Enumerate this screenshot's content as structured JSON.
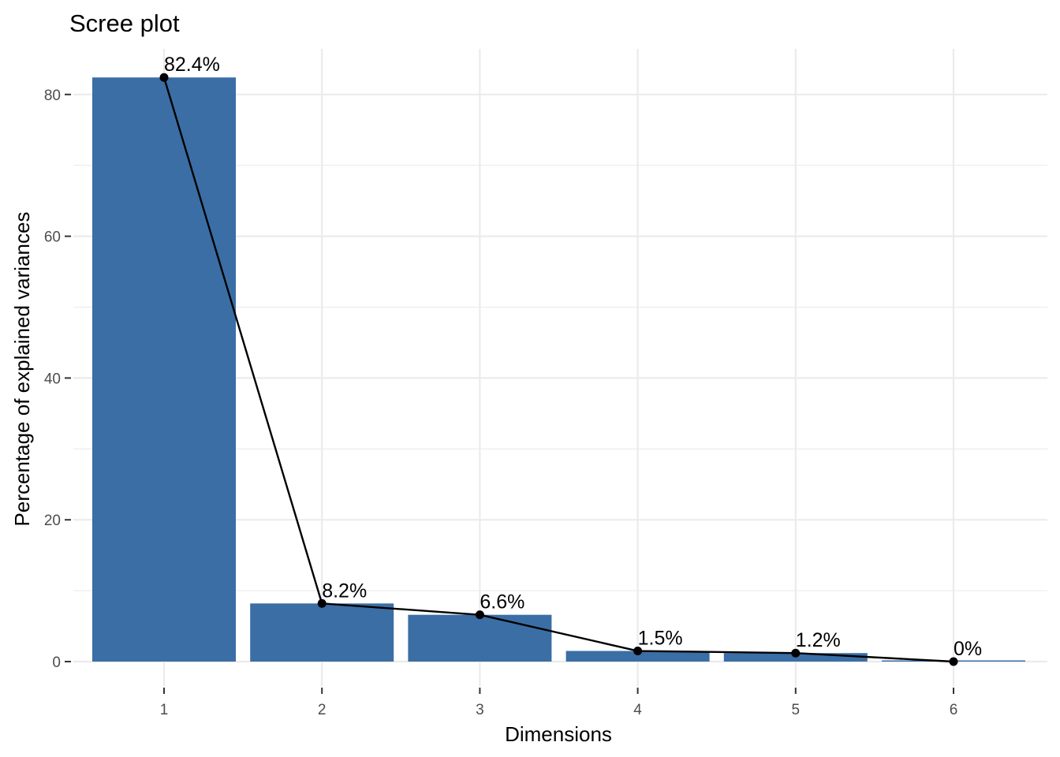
{
  "chart_data": {
    "type": "bar",
    "title": "Scree plot",
    "xlabel": "Dimensions",
    "ylabel": "Percentage of explained variances",
    "categories": [
      "1",
      "2",
      "3",
      "4",
      "5",
      "6"
    ],
    "values": [
      82.4,
      8.2,
      6.6,
      1.5,
      1.2,
      0.0
    ],
    "data_labels": [
      "82.4%",
      "8.2%",
      "6.6%",
      "1.5%",
      "1.2%",
      "0%"
    ],
    "ylim": [
      0,
      86
    ],
    "yticks": [
      0,
      20,
      40,
      60,
      80
    ],
    "grid": true,
    "legend": "none",
    "overlay_line": true,
    "colors": {
      "bar": "#3A6EA5",
      "line": "#000000",
      "point": "#000000",
      "background": "#FFFFFF",
      "grid": "#EBEBEB"
    }
  }
}
